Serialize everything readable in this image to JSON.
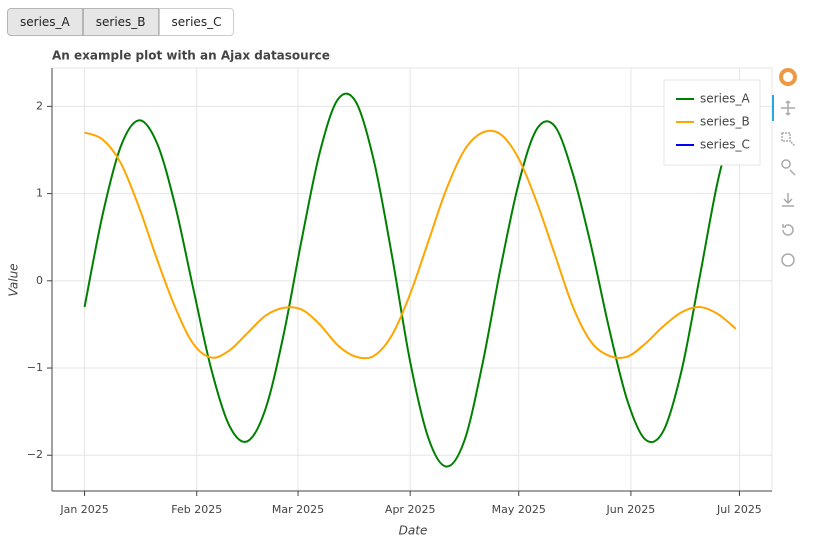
{
  "buttons": [
    {
      "label": "series_A",
      "active": true
    },
    {
      "label": "series_B",
      "active": true
    },
    {
      "label": "series_C",
      "active": false
    }
  ],
  "chart_data": {
    "type": "line",
    "title": "An example plot with an Ajax datasource",
    "x_label": "Date",
    "y_label": "Value",
    "x": [
      0,
      5,
      10,
      15,
      20,
      25,
      30,
      35,
      40,
      45,
      50,
      55,
      60,
      65,
      70,
      75,
      80,
      85,
      90,
      95,
      100,
      105,
      110,
      115,
      120,
      125,
      130,
      135,
      140,
      145,
      150,
      155,
      160,
      165,
      170,
      175,
      180
    ],
    "series": [
      {
        "name": "series_A",
        "color": "#008000",
        "visible": true,
        "values": [
          -0.3,
          0.76,
          1.54,
          1.84,
          1.58,
          0.87,
          -0.08,
          -1.01,
          -1.66,
          -1.84,
          -1.47,
          -0.62,
          0.47,
          1.47,
          2.08,
          2.05,
          1.37,
          0.28,
          -0.93,
          -1.8,
          -2.13,
          -1.83,
          -0.95,
          0.15,
          1.12,
          1.74,
          1.77,
          1.22,
          0.4,
          -0.55,
          -1.37,
          -1.82,
          -1.72,
          -1.03,
          0.04,
          1.14,
          1.92
        ]
      },
      {
        "name": "series_B",
        "color": "#ffa500",
        "visible": true,
        "values": [
          1.7,
          1.62,
          1.35,
          0.85,
          0.25,
          -0.3,
          -0.72,
          -0.88,
          -0.8,
          -0.6,
          -0.4,
          -0.31,
          -0.33,
          -0.5,
          -0.74,
          -0.87,
          -0.86,
          -0.62,
          -0.15,
          0.45,
          1.05,
          1.5,
          1.7,
          1.68,
          1.4,
          0.9,
          0.3,
          -0.3,
          -0.7,
          -0.86,
          -0.87,
          -0.72,
          -0.52,
          -0.36,
          -0.3,
          -0.38,
          -0.55
        ]
      },
      {
        "name": "series_C",
        "color": "#0000ff",
        "visible": false
      }
    ],
    "xlim": [
      -9,
      190
    ],
    "xticks": [
      {
        "value": 0,
        "label": "Jan 2025"
      },
      {
        "value": 31,
        "label": "Feb 2025"
      },
      {
        "value": 59,
        "label": "Mar 2025"
      },
      {
        "value": 90,
        "label": "Apr 2025"
      },
      {
        "value": 120,
        "label": "May 2025"
      },
      {
        "value": 151,
        "label": "Jun 2025"
      },
      {
        "value": 181,
        "label": "Jul 2025"
      }
    ],
    "ylim": [
      -2.41,
      2.44
    ],
    "yticks": [
      {
        "value": -2,
        "label": "−2"
      },
      {
        "value": -1,
        "label": "−1"
      },
      0,
      1,
      2
    ],
    "grid": true,
    "legend": "top-right"
  }
}
